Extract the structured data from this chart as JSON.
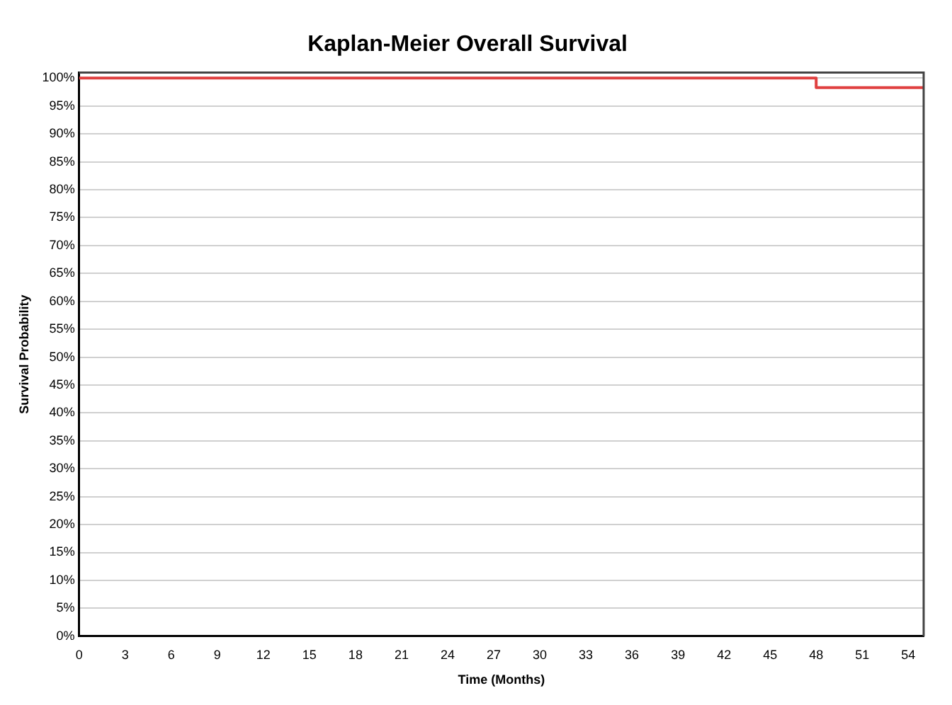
{
  "chart_data": {
    "type": "step",
    "title": "Kaplan-Meier Overall Survival",
    "xlabel": "Time (Months)",
    "ylabel": "Survival Probability",
    "x": [
      0,
      48,
      55
    ],
    "series": [
      {
        "color": "#e04040",
        "values": [
          100,
          98.3,
          98.3
        ]
      }
    ],
    "xlim": [
      0,
      55
    ],
    "xticks": [
      0,
      3,
      6,
      9,
      12,
      15,
      18,
      21,
      24,
      27,
      30,
      33,
      36,
      39,
      42,
      45,
      48,
      51,
      54
    ],
    "ylim": [
      0,
      101
    ],
    "yticks": [
      {
        "value": 0,
        "label": "0%"
      },
      {
        "value": 5,
        "label": "5%"
      },
      {
        "value": 10,
        "label": "10%"
      },
      {
        "value": 15,
        "label": "15%"
      },
      {
        "value": 20,
        "label": "20%"
      },
      {
        "value": 25,
        "label": "25%"
      },
      {
        "value": 30,
        "label": "30%"
      },
      {
        "value": 35,
        "label": "35%"
      },
      {
        "value": 40,
        "label": "40%"
      },
      {
        "value": 45,
        "label": "45%"
      },
      {
        "value": 50,
        "label": "50%"
      },
      {
        "value": 55,
        "label": "55%"
      },
      {
        "value": 60,
        "label": "60%"
      },
      {
        "value": 65,
        "label": "65%"
      },
      {
        "value": 70,
        "label": "70%"
      },
      {
        "value": 75,
        "label": "75%"
      },
      {
        "value": 80,
        "label": "80%"
      },
      {
        "value": 85,
        "label": "85%"
      },
      {
        "value": 90,
        "label": "90%"
      },
      {
        "value": 95,
        "label": "95%"
      },
      {
        "value": 100,
        "label": "100%"
      }
    ],
    "grid": "y",
    "legend": false,
    "marker": "none",
    "line_style": "solid"
  }
}
